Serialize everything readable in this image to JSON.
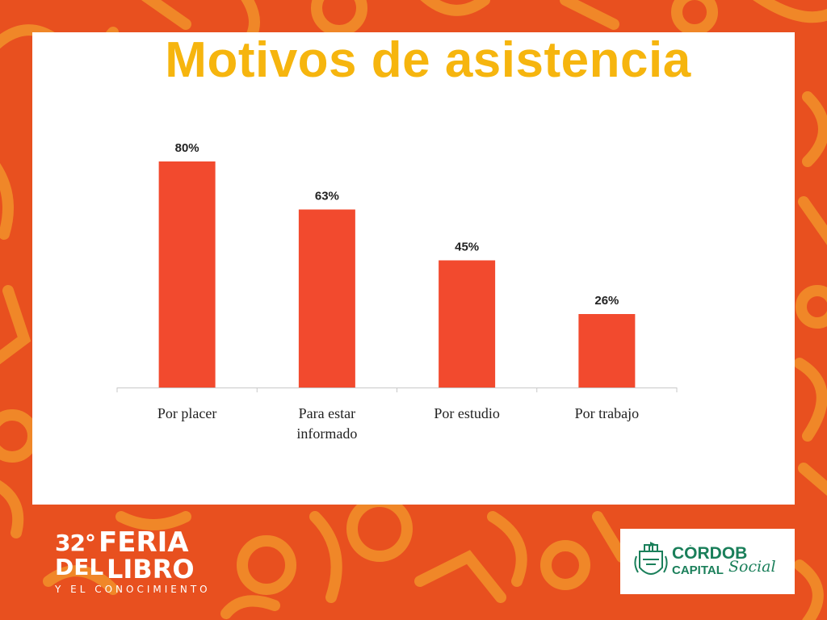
{
  "slide": {
    "title": "Motivos de asistencia"
  },
  "chart_data": {
    "type": "bar",
    "title": "Motivos de asistencia",
    "categories": [
      "Por placer",
      "Para estar informado",
      "Por estudio",
      "Por trabajo"
    ],
    "category_lines": [
      [
        "Por placer"
      ],
      [
        "Para estar",
        "informado"
      ],
      [
        "Por estudio"
      ],
      [
        "Por trabajo"
      ]
    ],
    "values": [
      80,
      63,
      45,
      26
    ],
    "value_labels": [
      "80%",
      "63%",
      "45%",
      "26%"
    ],
    "unit": "%",
    "ylim": [
      0,
      100
    ],
    "grid": false,
    "legend": "none",
    "bar_color": "#f24a2e"
  },
  "logos": {
    "feria": {
      "number": "32°",
      "word1": "FERIA",
      "del": "DEL",
      "word2": "LIBRO",
      "subtitle": "Y EL CONOCIMIENTO"
    },
    "cordoba": {
      "name": "CÓRDOB",
      "capital": "CAPITAL",
      "social": "Social"
    }
  },
  "colors": {
    "background": "#e8501f",
    "pattern": "#f08a2a",
    "title": "#f6b50e",
    "cordoba_green": "#1a7f5a"
  }
}
